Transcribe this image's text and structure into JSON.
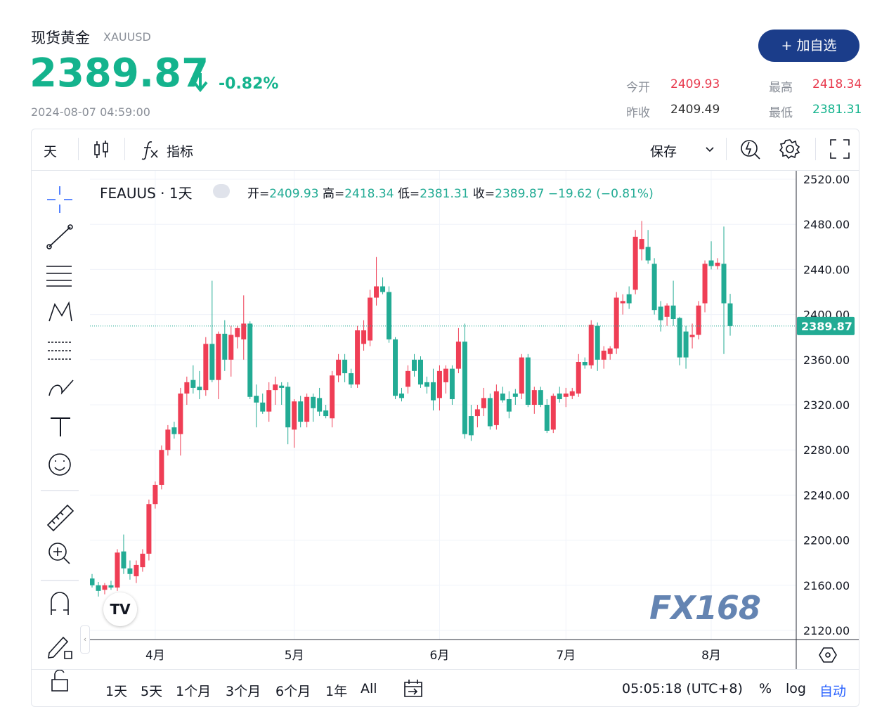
{
  "header": {
    "name": "现货黄金",
    "symbol": "XAUUSD",
    "price": "2389.87",
    "change": "-0.82%",
    "time": "2024-08-07 04:59:00",
    "button": "+ 加自选",
    "stats": [
      {
        "label": "今开",
        "value": "2409.93"
      },
      {
        "label": "最高",
        "value": "2418.34"
      },
      {
        "label": "昨收",
        "value": "2409.49"
      },
      {
        "label": "最低",
        "value": "2381.31"
      }
    ]
  },
  "toolbar": {
    "interval": "天",
    "indicators": "指标",
    "save": "保存"
  },
  "bottom_bar": {
    "ranges": [
      "1天",
      "5天",
      "1个月",
      "3个月",
      "6个月",
      "1年",
      "All"
    ],
    "clock": "05:05:18 (UTC+8)",
    "percent": "%",
    "log": "log",
    "auto": "自动"
  },
  "watermark": "FX168",
  "chart_data": {
    "type": "candlestick",
    "title": "FEAUUS · 1天",
    "legend": {
      "open": "开=",
      "high": "高=",
      "low": "低=",
      "close": "收=",
      "change": "−19.62 (−0.81%)"
    },
    "up_color": "#ef3e55",
    "down_color": "#22ab94",
    "grid": true,
    "categories": [
      null,
      null,
      null,
      null,
      null,
      null,
      null,
      null,
      null,
      null,
      "4月",
      null,
      null,
      null,
      null,
      null,
      null,
      null,
      null,
      null,
      null,
      null,
      null,
      null,
      null,
      null,
      null,
      null,
      null,
      null,
      null,
      null,
      "5月",
      null,
      null,
      null,
      null,
      null,
      null,
      null,
      null,
      null,
      null,
      null,
      null,
      null,
      null,
      null,
      null,
      null,
      null,
      null,
      null,
      null,
      null,
      "6月",
      null,
      null,
      null,
      null,
      null,
      null,
      null,
      null,
      null,
      null,
      null,
      null,
      null,
      null,
      null,
      null,
      null,
      null,
      null,
      "7月",
      null,
      null,
      null,
      null,
      null,
      null,
      null,
      null,
      null,
      null,
      null,
      null,
      null,
      null,
      null,
      null,
      null,
      null,
      null,
      null,
      null,
      null,
      "8月",
      null,
      null,
      null
    ],
    "open": [
      2166,
      2160,
      2156,
      2160,
      2158,
      2190,
      2175,
      2168,
      2176,
      2188,
      2232,
      2249,
      2280,
      2300,
      2294,
      2330,
      2342,
      2336,
      2333,
      2374,
      2342,
      2383,
      2360,
      2380,
      2378,
      2392,
      2328,
      2322,
      2314,
      2333,
      2337,
      2336,
      2298,
      2323,
      2305,
      2327,
      2326,
      2315,
      2308,
      2346,
      2360,
      2348,
      2338,
      2374,
      2377,
      2415,
      2425,
      2420,
      2378,
      2330,
      2336,
      2360,
      2360,
      2340,
      2340,
      2326,
      2340,
      2352,
      2352,
      2376,
      2310,
      2310,
      2317,
      2326,
      2302,
      2330,
      2325,
      2330,
      2330,
      2362,
      2320,
      2333,
      2320,
      2298,
      2330,
      2327,
      2328,
      2330,
      2358,
      2355,
      2390,
      2360,
      2365,
      2370,
      2410,
      2418,
      2422,
      2458,
      2460,
      2445,
      2407,
      2398,
      2408,
      2397,
      2385,
      2380,
      2382,
      2410,
      2448,
      2443,
      2445,
      2409.93
    ],
    "high": [
      2170,
      2163,
      2162,
      2164,
      2192,
      2205,
      2182,
      2182,
      2192,
      2236,
      2252,
      2284,
      2302,
      2305,
      2335,
      2345,
      2355,
      2350,
      2380,
      2430,
      2385,
      2395,
      2390,
      2390,
      2417,
      2394,
      2338,
      2330,
      2340,
      2345,
      2340,
      2340,
      2325,
      2328,
      2330,
      2330,
      2335,
      2320,
      2350,
      2365,
      2365,
      2352,
      2390,
      2395,
      2422,
      2451,
      2433,
      2425,
      2380,
      2335,
      2355,
      2365,
      2363,
      2345,
      2352,
      2355,
      2355,
      2355,
      2388,
      2392,
      2320,
      2320,
      2335,
      2330,
      2338,
      2336,
      2332,
      2334,
      2365,
      2365,
      2336,
      2336,
      2325,
      2330,
      2336,
      2335,
      2335,
      2365,
      2362,
      2395,
      2393,
      2372,
      2372,
      2420,
      2418,
      2425,
      2475,
      2483,
      2475,
      2450,
      2412,
      2410,
      2430,
      2398,
      2390,
      2392,
      2412,
      2448,
      2465,
      2450,
      2478,
      2418.34
    ],
    "low": [
      2158,
      2150,
      2152,
      2156,
      2155,
      2170,
      2165,
      2162,
      2172,
      2182,
      2228,
      2245,
      2275,
      2290,
      2275,
      2320,
      2330,
      2325,
      2328,
      2340,
      2325,
      2350,
      2345,
      2370,
      2360,
      2325,
      2300,
      2312,
      2305,
      2320,
      2320,
      2285,
      2282,
      2300,
      2300,
      2305,
      2310,
      2308,
      2300,
      2340,
      2340,
      2335,
      2335,
      2368,
      2372,
      2408,
      2418,
      2375,
      2325,
      2323,
      2330,
      2345,
      2335,
      2330,
      2315,
      2315,
      2330,
      2320,
      2348,
      2290,
      2288,
      2300,
      2310,
      2298,
      2298,
      2322,
      2308,
      2320,
      2325,
      2318,
      2312,
      2318,
      2295,
      2295,
      2322,
      2318,
      2325,
      2327,
      2352,
      2352,
      2350,
      2352,
      2360,
      2365,
      2400,
      2405,
      2418,
      2448,
      2445,
      2400,
      2385,
      2390,
      2390,
      2355,
      2352,
      2370,
      2378,
      2402,
      2440,
      2440,
      2365,
      2381.31
    ],
    "close": [
      2160,
      2155,
      2160,
      2158,
      2189,
      2175,
      2170,
      2178,
      2188,
      2232,
      2249,
      2280,
      2298,
      2294,
      2330,
      2340,
      2335,
      2333,
      2374,
      2342,
      2383,
      2360,
      2382,
      2388,
      2392,
      2327,
      2322,
      2314,
      2333,
      2338,
      2335,
      2300,
      2323,
      2305,
      2327,
      2317,
      2314,
      2310,
      2346,
      2360,
      2348,
      2338,
      2386,
      2386,
      2415,
      2425,
      2420,
      2378,
      2328,
      2326,
      2350,
      2350,
      2338,
      2336,
      2324,
      2350,
      2352,
      2325,
      2376,
      2294,
      2293,
      2316,
      2326,
      2301,
      2332,
      2324,
      2314,
      2327,
      2362,
      2320,
      2333,
      2320,
      2297,
      2328,
      2325,
      2330,
      2332,
      2358,
      2355,
      2391,
      2360,
      2368,
      2370,
      2415,
      2412,
      2410,
      2469,
      2467,
      2448,
      2404,
      2395,
      2408,
      2396,
      2362,
      2362,
      2382,
      2408,
      2445,
      2443,
      2446,
      2410,
      2389.87
    ],
    "ylim": [
      2120,
      2520
    ],
    "yticks": [
      {
        "value": 2120,
        "label": "2120.00"
      },
      {
        "value": 2160,
        "label": "2160.00"
      },
      {
        "value": 2200,
        "label": "2200.00"
      },
      {
        "value": 2240,
        "label": "2240.00"
      },
      {
        "value": 2280,
        "label": "2280.00"
      },
      {
        "value": 2320,
        "label": "2320.00"
      },
      {
        "value": 2360,
        "label": "2360.00"
      },
      {
        "value": 2400,
        "label": "2400.00"
      },
      {
        "value": 2440,
        "label": "2440.00"
      },
      {
        "value": 2480,
        "label": "2480.00"
      },
      {
        "value": 2520,
        "label": "2520.00"
      }
    ]
  }
}
